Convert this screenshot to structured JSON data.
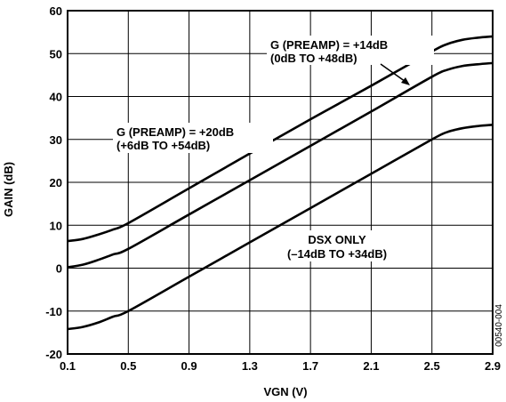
{
  "chart_data": {
    "type": "line",
    "xlabel": "VGN (V)",
    "ylabel": "GAIN (dB)",
    "xlim": [
      0.1,
      2.9
    ],
    "ylim": [
      -20,
      60
    ],
    "x_ticks": [
      "0.1",
      "0.5",
      "0.9",
      "1.3",
      "1.7",
      "2.1",
      "2.5",
      "2.9"
    ],
    "y_ticks": [
      "60",
      "50",
      "40",
      "30",
      "20",
      "10",
      "0",
      "-10",
      "-20"
    ],
    "grid": true,
    "series": [
      {
        "x": [
          0.1,
          0.2,
          0.3,
          0.4,
          0.5,
          0.9,
          1.3,
          1.7,
          2.1,
          2.5,
          2.6,
          2.7,
          2.8,
          2.9
        ],
        "values": [
          6.3,
          6.8,
          7.8,
          9.0,
          10.5,
          18.6,
          26.7,
          34.7,
          42.5,
          50.5,
          52.2,
          53.2,
          53.7,
          54.0
        ]
      },
      {
        "x": [
          0.1,
          0.2,
          0.3,
          0.4,
          0.5,
          0.9,
          1.3,
          1.7,
          2.1,
          2.5,
          2.6,
          2.7,
          2.8,
          2.9
        ],
        "values": [
          0.2,
          0.8,
          1.9,
          3.2,
          4.5,
          12.5,
          20.5,
          28.5,
          36.5,
          44.6,
          46.2,
          47.1,
          47.5,
          47.8
        ]
      },
      {
        "x": [
          0.1,
          0.2,
          0.3,
          0.4,
          0.5,
          0.9,
          1.3,
          1.7,
          2.1,
          2.5,
          2.6,
          2.7,
          2.8,
          2.9
        ],
        "values": [
          -14.2,
          -13.7,
          -12.7,
          -11.3,
          -10.0,
          -2.0,
          6.0,
          14.0,
          22.0,
          30.0,
          31.7,
          32.6,
          33.1,
          33.4
        ]
      }
    ],
    "annotations": [
      {
        "lines": [
          "G (PREAMP) = +14dB",
          "(0dB TO +48dB)"
        ]
      },
      {
        "lines": [
          "G (PREAMP) = +20dB",
          "(+6dB TO +54dB)"
        ]
      },
      {
        "lines": [
          "DSX ONLY",
          "(–14dB TO +34dB)"
        ]
      }
    ],
    "figure_code": "00540-004"
  }
}
